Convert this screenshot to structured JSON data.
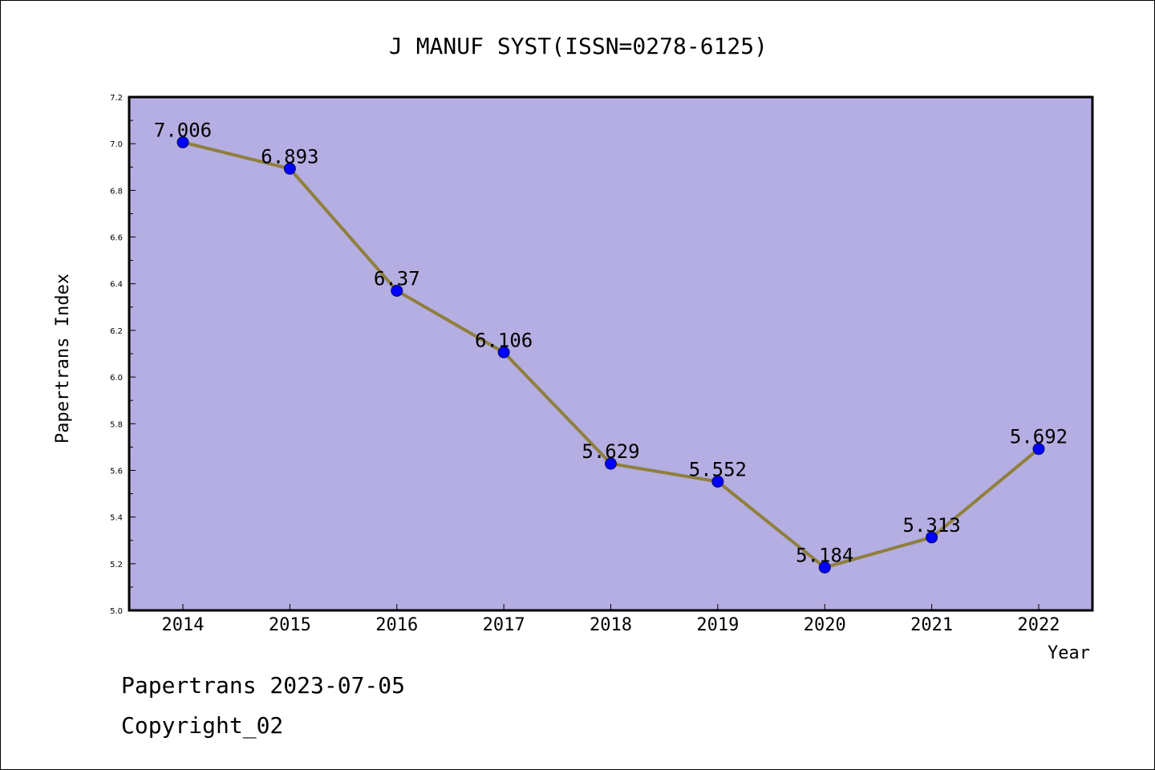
{
  "chart_data": {
    "type": "line",
    "title": "J MANUF SYST(ISSN=0278-6125)",
    "xlabel": "Year",
    "ylabel": "Papertrans Index",
    "categories": [
      "2014",
      "2015",
      "2016",
      "2017",
      "2018",
      "2019",
      "2020",
      "2021",
      "2022"
    ],
    "values": [
      7.006,
      6.893,
      6.37,
      6.106,
      5.629,
      5.552,
      5.184,
      5.313,
      5.692
    ],
    "data_labels": [
      "7.006",
      "6.893",
      "6.37",
      "6.106",
      "5.629",
      "5.552",
      "5.184",
      "5.313",
      "5.692"
    ],
    "ylim": [
      5.0,
      7.2
    ],
    "yticks": [
      "5.0",
      "5.2",
      "5.4",
      "5.6",
      "5.8",
      "6.0",
      "6.2",
      "6.4",
      "6.6",
      "6.8",
      "7.0",
      "7.2"
    ],
    "grid": false,
    "colors": {
      "plot_background": "#b4aee2",
      "line": "#8f7f3c",
      "marker": "#0000ff",
      "marker_edge": "#0b0b5a"
    }
  },
  "footer": {
    "date_line": "Papertrans 2023-07-05",
    "copyright_line": "Copyright_02"
  }
}
